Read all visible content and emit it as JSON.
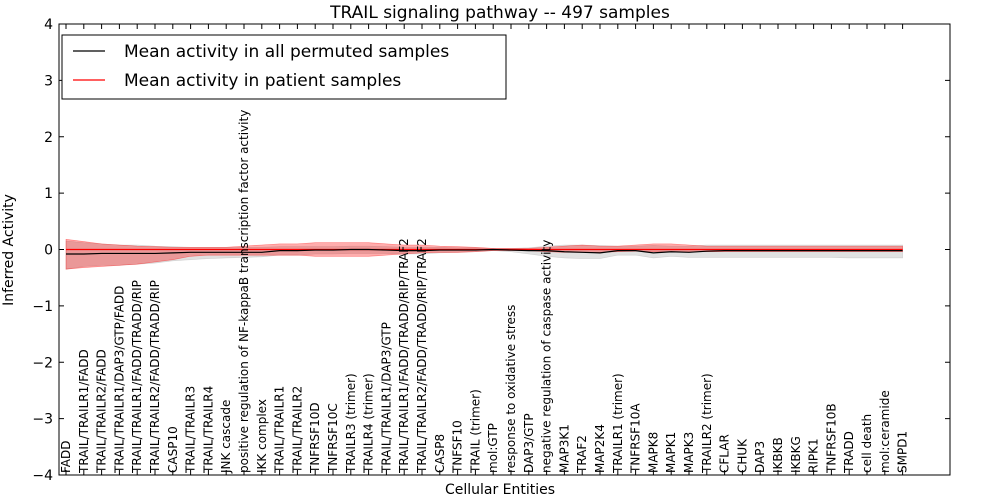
{
  "chart_data": {
    "type": "line",
    "title": "TRAIL signaling pathway -- 497 samples",
    "xlabel": "Cellular Entities",
    "ylabel": "Inferred Activity",
    "ylim": [
      -4,
      4
    ],
    "yticks": [
      -4,
      -3,
      -2,
      -1,
      0,
      1,
      2,
      3,
      4
    ],
    "ytick_labels": [
      "−4",
      "−3",
      "−2",
      "−1",
      "0",
      "1",
      "2",
      "3",
      "4"
    ],
    "legend_position": "top-left",
    "categories": [
      "FADD",
      "TRAIL/TRAILR1/FADD",
      "TRAIL/TRAILR2/FADD",
      "TRAIL/TRAILR1/DAP3/GTP/FADD",
      "TRAIL/TRAILR1/FADD/TRADD/RIP",
      "TRAIL/TRAILR2/FADD/TRADD/RIP",
      "CASP10",
      "TRAIL/TRAILR3",
      "TRAIL/TRAILR4",
      "JNK cascade",
      "positive regulation of NF-kappaB transcription factor activity",
      "IKK complex",
      "TRAIL/TRAILR1",
      "TRAIL/TRAILR2",
      "TNFRSF10D",
      "TNFRSF10C",
      "TRAILR3 (trimer)",
      "TRAILR4 (trimer)",
      "TRAIL/TRAILR1/DAP3/GTP",
      "TRAIL/TRAILR1/FADD/TRADD/RIP/TRAF2",
      "TRAIL/TRAILR2/FADD/TRADD/RIP/TRAF2",
      "CASP8",
      "TNFSF10",
      "TRAIL (trimer)",
      "mol:GTP",
      "response to oxidative stress",
      "DAP3/GTP",
      "negative regulation of caspase activity",
      "MAP3K1",
      "TRAF2",
      "MAP2K4",
      "TRAILR1 (trimer)",
      "TNFRSF10A",
      "MAPK8",
      "MAPK1",
      "MAPK3",
      "TRAILR2 (trimer)",
      "CFLAR",
      "CHUK",
      "DAP3",
      "IKBKB",
      "IKBKG",
      "RIPK1",
      "TNFRSF10B",
      "TRADD",
      "cell death",
      "mol:ceramide",
      "SMPD1"
    ],
    "series": [
      {
        "name": "Mean activity in all permuted samples",
        "color": "#000000",
        "values": [
          -0.08,
          -0.08,
          -0.07,
          -0.07,
          -0.07,
          -0.07,
          -0.06,
          -0.05,
          -0.05,
          -0.05,
          -0.05,
          -0.05,
          -0.02,
          -0.02,
          -0.01,
          -0.01,
          0.0,
          0.0,
          -0.01,
          -0.02,
          -0.02,
          -0.01,
          -0.01,
          -0.01,
          0.0,
          -0.01,
          -0.02,
          -0.02,
          -0.04,
          -0.05,
          -0.06,
          -0.02,
          -0.02,
          -0.06,
          -0.04,
          -0.05,
          -0.03,
          -0.02,
          -0.02,
          -0.02,
          -0.02,
          -0.02,
          -0.02,
          -0.02,
          -0.02,
          -0.02,
          -0.02,
          -0.02
        ],
        "band": {
          "lower": [
            -0.35,
            -0.3,
            -0.28,
            -0.28,
            -0.26,
            -0.24,
            -0.2,
            -0.18,
            -0.16,
            -0.15,
            -0.14,
            -0.13,
            -0.1,
            -0.1,
            -0.08,
            -0.08,
            -0.07,
            -0.07,
            -0.07,
            -0.08,
            -0.08,
            -0.06,
            -0.05,
            -0.04,
            -0.02,
            -0.04,
            -0.08,
            -0.12,
            -0.15,
            -0.16,
            -0.16,
            -0.1,
            -0.1,
            -0.15,
            -0.12,
            -0.14,
            -0.14,
            -0.14,
            -0.14,
            -0.14,
            -0.14,
            -0.14,
            -0.14,
            -0.14,
            -0.15,
            -0.15,
            -0.15,
            -0.15
          ],
          "upper": [
            0.15,
            0.12,
            0.1,
            0.08,
            0.08,
            0.06,
            0.05,
            0.04,
            0.04,
            0.04,
            0.04,
            0.04,
            0.05,
            0.05,
            0.05,
            0.05,
            0.06,
            0.06,
            0.05,
            0.04,
            0.04,
            0.04,
            0.03,
            0.03,
            0.02,
            0.02,
            0.03,
            0.06,
            0.08,
            0.08,
            0.07,
            0.06,
            0.06,
            0.07,
            0.06,
            0.06,
            0.08,
            0.08,
            0.08,
            0.08,
            0.08,
            0.08,
            0.08,
            0.08,
            0.08,
            0.08,
            0.08,
            0.08
          ],
          "color": "#aaaaaa"
        }
      },
      {
        "name": "Mean activity in patient samples",
        "color": "#ff0000",
        "values": [
          0.0,
          0.0,
          0.0,
          0.0,
          0.0,
          0.0,
          0.0,
          0.0,
          0.0,
          0.0,
          0.0,
          0.0,
          0.0,
          0.0,
          0.0,
          0.0,
          0.0,
          0.0,
          0.0,
          0.0,
          0.0,
          0.0,
          0.0,
          0.0,
          0.0,
          0.0,
          0.0,
          0.0,
          0.0,
          0.0,
          0.0,
          0.0,
          0.0,
          0.0,
          0.0,
          0.0,
          0.0,
          0.0,
          0.0,
          0.0,
          0.0,
          0.0,
          0.0,
          0.0,
          0.0,
          0.0,
          0.0,
          0.0
        ],
        "band": {
          "lower": [
            -0.35,
            -0.32,
            -0.3,
            -0.28,
            -0.26,
            -0.22,
            -0.18,
            -0.12,
            -0.1,
            -0.1,
            -0.1,
            -0.1,
            -0.1,
            -0.1,
            -0.12,
            -0.12,
            -0.12,
            -0.12,
            -0.1,
            -0.08,
            -0.06,
            -0.05,
            -0.05,
            -0.04,
            -0.02,
            -0.02,
            -0.02,
            -0.04,
            -0.05,
            -0.05,
            -0.05,
            -0.04,
            -0.03,
            -0.04,
            -0.04,
            -0.04,
            -0.04,
            -0.04,
            -0.04,
            -0.04,
            -0.04,
            -0.04,
            -0.04,
            -0.04,
            -0.04,
            -0.04,
            -0.04,
            -0.04
          ],
          "upper": [
            0.18,
            0.14,
            0.1,
            0.08,
            0.06,
            0.05,
            0.04,
            0.04,
            0.04,
            0.04,
            0.06,
            0.08,
            0.1,
            0.1,
            0.12,
            0.12,
            0.12,
            0.12,
            0.1,
            0.08,
            0.08,
            0.06,
            0.05,
            0.04,
            0.02,
            0.02,
            0.02,
            0.04,
            0.06,
            0.08,
            0.06,
            0.06,
            0.08,
            0.1,
            0.1,
            0.08,
            0.06,
            0.06,
            0.06,
            0.06,
            0.06,
            0.06,
            0.06,
            0.06,
            0.06,
            0.06,
            0.06,
            0.06
          ],
          "color": "#ff0000"
        }
      }
    ],
    "reference_line": {
      "value": 0,
      "style": "dotted"
    }
  }
}
